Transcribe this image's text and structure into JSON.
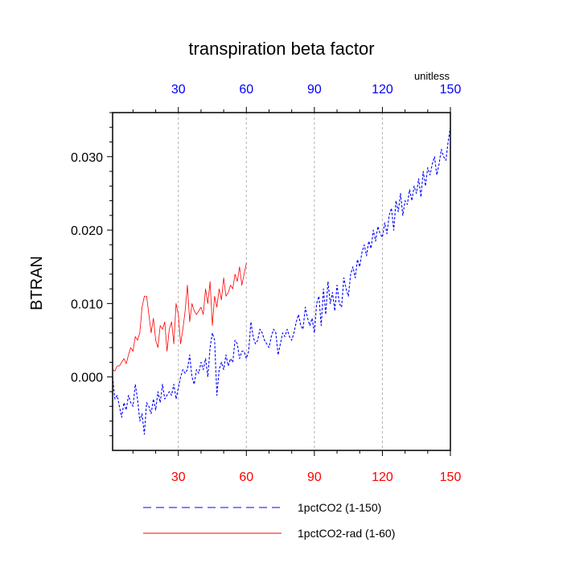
{
  "chart_data": {
    "type": "line",
    "title": "transpiration beta factor",
    "units_label": "unitless",
    "ylabel": "BTRAN",
    "xlabel": "",
    "xlim": [
      1,
      150
    ],
    "ylim": [
      -0.01,
      0.036
    ],
    "y_ticks": [
      0.0,
      0.01,
      0.02,
      0.03
    ],
    "y_tick_labels": [
      "0.000",
      "0.010",
      "0.020",
      "0.030"
    ],
    "y_minor_step": 0.002,
    "x_ticks": [
      30,
      60,
      90,
      120,
      150
    ],
    "x_tick_labels_top": [
      "30",
      "60",
      "90",
      "120",
      "150"
    ],
    "x_tick_labels_bottom": [
      "30",
      "60",
      "90",
      "120",
      "150"
    ],
    "top_axis_color": "#0000ff",
    "bottom_axis_color": "#ff0000",
    "grid": "vertical-dashed-at-major-x",
    "legend_placement": "bottom",
    "series": [
      {
        "name": "1pctCO2 (1-150)",
        "color": "#0000ff",
        "dash": "dashed",
        "x_start": 1,
        "values": [
          0.0,
          -0.003,
          -0.0025,
          -0.004,
          -0.0055,
          -0.0035,
          -0.0045,
          -0.0025,
          -0.0035,
          -0.004,
          -0.001,
          -0.003,
          -0.006,
          -0.005,
          -0.0078,
          -0.0035,
          -0.004,
          -0.005,
          -0.003,
          -0.0045,
          -0.002,
          -0.0035,
          -0.001,
          -0.003,
          -0.0025,
          -0.002,
          -0.0025,
          -0.001,
          -0.003,
          -0.0015,
          0.0,
          0.001,
          0.0005,
          0.001,
          0.003,
          0.0,
          -0.001,
          0.001,
          0.0005,
          0.002,
          0.001,
          0.0025,
          0.0,
          0.004,
          0.006,
          0.005,
          -0.0025,
          0.001,
          0.002,
          0.001,
          0.003,
          0.0015,
          0.0025,
          0.002,
          0.005,
          0.0045,
          0.0025,
          0.0035,
          0.0035,
          0.0025,
          0.0035,
          0.0075,
          0.0055,
          0.0045,
          0.005,
          0.0065,
          0.006,
          0.005,
          0.0045,
          0.004,
          0.0055,
          0.0065,
          0.006,
          0.003,
          0.0045,
          0.006,
          0.0055,
          0.0065,
          0.0055,
          0.005,
          0.006,
          0.0075,
          0.0085,
          0.007,
          0.0065,
          0.0095,
          0.008,
          0.007,
          0.008,
          0.006,
          0.01,
          0.011,
          0.007,
          0.012,
          0.0085,
          0.013,
          0.01,
          0.0115,
          0.009,
          0.0125,
          0.01,
          0.0095,
          0.0135,
          0.012,
          0.011,
          0.014,
          0.015,
          0.0135,
          0.016,
          0.015,
          0.017,
          0.018,
          0.0165,
          0.0185,
          0.0175,
          0.02,
          0.0185,
          0.0205,
          0.0195,
          0.019,
          0.021,
          0.0195,
          0.022,
          0.023,
          0.02,
          0.024,
          0.0225,
          0.025,
          0.022,
          0.024,
          0.0235,
          0.0255,
          0.024,
          0.026,
          0.025,
          0.027,
          0.0245,
          0.028,
          0.026,
          0.0285,
          0.0275,
          0.029,
          0.03,
          0.0275,
          0.029,
          0.031,
          0.03,
          0.0295,
          0.032,
          0.034
        ]
      },
      {
        "name": "1pctCO2-rad (1-60)",
        "color": "#ff0000",
        "dash": "solid",
        "x_start": 1,
        "values": [
          0.001,
          0.0008,
          0.0015,
          0.0015,
          0.002,
          0.0025,
          0.0018,
          0.003,
          0.004,
          0.0035,
          0.0055,
          0.005,
          0.006,
          0.0095,
          0.011,
          0.011,
          0.0085,
          0.006,
          0.008,
          0.005,
          0.004,
          0.007,
          0.0065,
          0.0075,
          0.0035,
          0.0065,
          0.0075,
          0.0045,
          0.01,
          0.0085,
          0.0045,
          0.0065,
          0.009,
          0.0125,
          0.0075,
          0.01,
          0.009,
          0.0085,
          0.009,
          0.0095,
          0.0085,
          0.012,
          0.01,
          0.013,
          0.007,
          0.011,
          0.0095,
          0.012,
          0.0105,
          0.0135,
          0.011,
          0.0115,
          0.0125,
          0.012,
          0.014,
          0.013,
          0.015,
          0.0125,
          0.014,
          0.0155
        ]
      }
    ]
  }
}
